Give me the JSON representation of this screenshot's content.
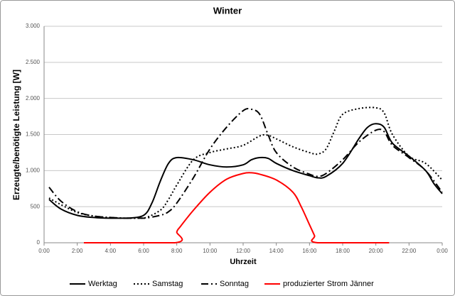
{
  "chart_data": {
    "type": "line",
    "title": "Winter",
    "x_label": "Uhrzeit",
    "y_label": "Erzeugte/benötigte Leistung [W]",
    "xlim": [
      0,
      24
    ],
    "xticks": [
      {
        "value": 0,
        "label": "0:00"
      },
      {
        "value": 2,
        "label": "2:00"
      },
      {
        "value": 4,
        "label": "4:00"
      },
      {
        "value": 6,
        "label": "6:00"
      },
      {
        "value": 8,
        "label": "8:00"
      },
      {
        "value": 10,
        "label": "10:00"
      },
      {
        "value": 12,
        "label": "12:00"
      },
      {
        "value": 14,
        "label": "14:00"
      },
      {
        "value": 16,
        "label": "16:00"
      },
      {
        "value": 18,
        "label": "18:00"
      },
      {
        "value": 20,
        "label": "20:00"
      },
      {
        "value": 22,
        "label": "22:00"
      },
      {
        "value": 24,
        "label": "0:00"
      }
    ],
    "ylim": [
      0,
      3000
    ],
    "yticks": [
      0,
      {
        "value": 500,
        "label": "500"
      },
      {
        "value": 1000,
        "label": "1.000"
      },
      {
        "value": 1500,
        "label": "1.500"
      },
      {
        "value": 2000,
        "label": "2.000"
      },
      {
        "value": 2500,
        "label": "2.500"
      },
      {
        "value": 3000,
        "label": "3.000"
      }
    ],
    "grid": true,
    "legend": "bottom",
    "series": [
      {
        "name": "Werktag",
        "color": "#000000",
        "dash": "solid",
        "x": [
          0.3,
          1,
          2,
          3,
          4,
          5,
          6,
          6.5,
          7,
          7.5,
          8,
          9,
          10,
          11,
          12,
          12.5,
          13,
          13.5,
          14,
          15,
          16,
          16.5,
          17,
          18,
          19,
          19.5,
          20,
          20.5,
          21,
          22,
          23,
          23.5,
          24
        ],
        "values": [
          600,
          470,
          380,
          350,
          340,
          340,
          380,
          550,
          850,
          1100,
          1180,
          1150,
          1080,
          1050,
          1080,
          1150,
          1180,
          1170,
          1100,
          1000,
          930,
          900,
          920,
          1100,
          1450,
          1600,
          1650,
          1600,
          1380,
          1200,
          1000,
          820,
          680
        ]
      },
      {
        "name": "Samstag",
        "color": "#000000",
        "dash": "dotted",
        "x": [
          0.3,
          1,
          2,
          3,
          4,
          5,
          6,
          7,
          7.5,
          8,
          9,
          10,
          11,
          12,
          13,
          13.5,
          14,
          15,
          16,
          16.5,
          17,
          17.5,
          18,
          19,
          20,
          20.5,
          21,
          22,
          23,
          24
        ],
        "values": [
          620,
          530,
          420,
          370,
          350,
          340,
          340,
          450,
          600,
          800,
          1150,
          1250,
          1300,
          1350,
          1480,
          1490,
          1440,
          1330,
          1250,
          1230,
          1300,
          1550,
          1780,
          1860,
          1870,
          1800,
          1500,
          1200,
          1100,
          870
        ]
      },
      {
        "name": "Sonntag",
        "color": "#000000",
        "dash": "dashdot",
        "x": [
          0.3,
          1,
          2,
          3,
          4,
          5,
          6,
          7,
          7.5,
          8,
          9,
          10,
          11,
          12,
          12.5,
          13,
          13.5,
          14,
          15,
          16,
          16.5,
          17,
          18,
          19,
          20,
          20.5,
          21,
          22,
          23,
          24
        ],
        "values": [
          770,
          580,
          430,
          370,
          350,
          340,
          340,
          380,
          430,
          550,
          900,
          1300,
          1600,
          1830,
          1850,
          1780,
          1500,
          1250,
          1050,
          950,
          920,
          960,
          1150,
          1400,
          1560,
          1540,
          1350,
          1180,
          1000,
          700
        ]
      },
      {
        "name": "produzierter Strom Jänner",
        "color": "#ff0000",
        "dash": "solid",
        "x": [
          2.4,
          7.9,
          8,
          8.2,
          9,
          10,
          11,
          12,
          12.5,
          13,
          14,
          15,
          15.5,
          16,
          16.3,
          16.5,
          20.8
        ],
        "values": [
          0,
          0,
          150,
          220,
          450,
          700,
          880,
          960,
          970,
          950,
          870,
          700,
          500,
          250,
          100,
          0,
          0
        ]
      }
    ]
  }
}
